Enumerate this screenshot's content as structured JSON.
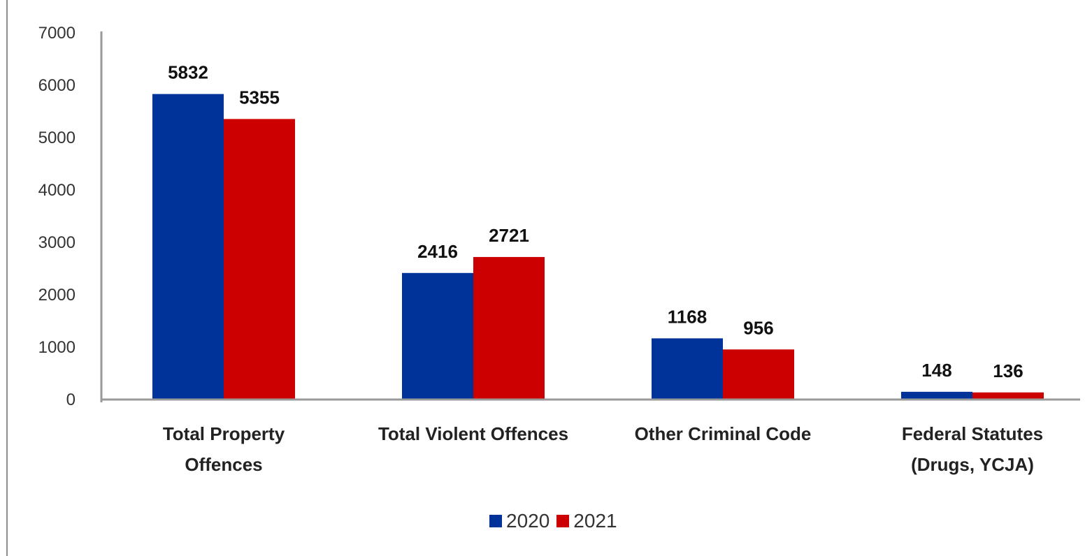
{
  "chart_data": {
    "type": "bar",
    "categories": [
      [
        "Total Property",
        "Offences"
      ],
      [
        "Total Violent Offences"
      ],
      [
        "Other Criminal Code"
      ],
      [
        "Federal Statutes",
        "(Drugs, YCJA)"
      ]
    ],
    "series": [
      {
        "name": "2020",
        "color": "#003399",
        "values": [
          5832,
          2416,
          1168,
          148
        ]
      },
      {
        "name": "2021",
        "color": "#cc0000",
        "values": [
          5355,
          2721,
          956,
          136
        ]
      }
    ],
    "ylim": [
      0,
      7000
    ],
    "yticks": [
      "0",
      "1000",
      "2000",
      "3000",
      "4000",
      "5000",
      "6000",
      "7000"
    ],
    "grid": false,
    "legend_position": "bottom"
  }
}
